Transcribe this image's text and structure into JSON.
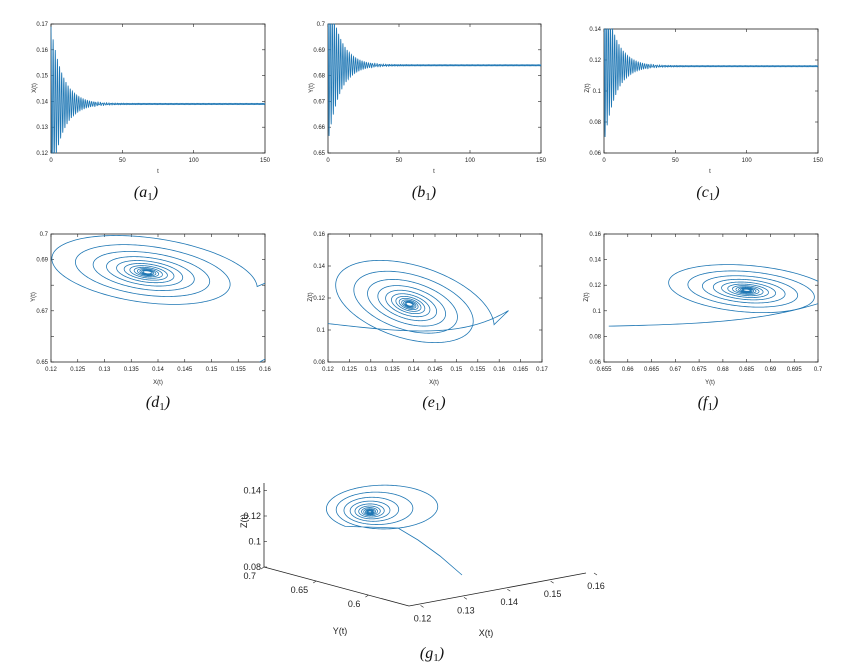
{
  "figure": {
    "line_color": "#1f77b4"
  },
  "chart_data": [
    {
      "id": "a1",
      "type": "line",
      "caption": "a",
      "caption_sub": "1",
      "xlabel": "t",
      "ylabel": "X(t)",
      "xlim": [
        0,
        150
      ],
      "ylim": [
        0.12,
        0.17
      ],
      "xticks": [
        0,
        50,
        100,
        150
      ],
      "yticks": [
        0.12,
        0.13,
        0.14,
        0.15,
        0.16,
        0.17
      ],
      "xtick_labels": [
        "0",
        "50",
        "100",
        "150"
      ],
      "ytick_labels": [
        "0.12",
        "0.13",
        "0.14",
        "0.15",
        "0.16",
        "0.17"
      ],
      "series": [
        {
          "name": "X(t)",
          "equilibrium": 0.139,
          "initial_amplitude": 0.03,
          "decay_rate": 0.12,
          "period": 1.5
        }
      ]
    },
    {
      "id": "b1",
      "type": "line",
      "caption": "b",
      "caption_sub": "1",
      "xlabel": "t",
      "ylabel": "Y(t)",
      "xlim": [
        0,
        150
      ],
      "ylim": [
        0.65,
        0.7
      ],
      "xticks": [
        0,
        50,
        100,
        150
      ],
      "yticks": [
        0.65,
        0.66,
        0.67,
        0.68,
        0.69,
        0.7
      ],
      "xtick_labels": [
        "0",
        "50",
        "100",
        "150"
      ],
      "ytick_labels": [
        "0.65",
        "0.66",
        "0.67",
        "0.68",
        "0.69",
        "0.7"
      ],
      "series": [
        {
          "name": "Y(t)",
          "equilibrium": 0.684,
          "initial_amplitude": 0.03,
          "decay_rate": 0.12,
          "period": 1.5
        }
      ]
    },
    {
      "id": "c1",
      "type": "line",
      "caption": "c",
      "caption_sub": "1",
      "xlabel": "t",
      "ylabel": "Z(t)",
      "xlim": [
        0,
        150
      ],
      "ylim": [
        0.06,
        0.14
      ],
      "xticks": [
        0,
        50,
        100,
        150
      ],
      "yticks": [
        0.06,
        0.08,
        0.1,
        0.12,
        0.14
      ],
      "xtick_labels": [
        "0",
        "50",
        "100",
        "150"
      ],
      "ytick_labels": [
        "0.06",
        "0.08",
        "0.1",
        "0.12",
        "0.14"
      ],
      "series": [
        {
          "name": "Z(t)",
          "equilibrium": 0.116,
          "initial_amplitude": 0.05,
          "decay_rate": 0.12,
          "period": 1.5
        }
      ]
    },
    {
      "id": "d1",
      "type": "phase",
      "caption": "d",
      "caption_sub": "1",
      "xlabel": "X(t)",
      "ylabel": "Y(t)",
      "xlim": [
        0.12,
        0.16
      ],
      "ylim": [
        0.65,
        0.7
      ],
      "xticks": [
        0.12,
        0.125,
        0.13,
        0.135,
        0.14,
        0.145,
        0.15,
        0.155,
        0.16
      ],
      "yticks": [
        0.65,
        0.66,
        0.67,
        0.68,
        0.69,
        0.7
      ],
      "xtick_labels": [
        "0.12",
        "0.125",
        "0.13",
        "0.135",
        "0.14",
        "0.145",
        "0.15",
        "0.155",
        "0.16"
      ],
      "ytick_labels": [
        "0.65",
        "",
        "0.67",
        "",
        "0.69",
        "0.7"
      ],
      "series": [
        {
          "name": "trajectory",
          "center": [
            0.138,
            0.685
          ],
          "start": [
            0.159,
            0.65
          ],
          "radius": [
            0.019,
            0.014
          ],
          "tilt_deg": -20,
          "turns": 12
        }
      ]
    },
    {
      "id": "e1",
      "type": "phase",
      "caption": "e",
      "caption_sub": "1",
      "xlabel": "X(t)",
      "ylabel": "Z(t)",
      "xlim": [
        0.12,
        0.17
      ],
      "ylim": [
        0.08,
        0.16
      ],
      "xticks": [
        0.12,
        0.125,
        0.13,
        0.135,
        0.14,
        0.145,
        0.15,
        0.155,
        0.16,
        0.165,
        0.17
      ],
      "yticks": [
        0.08,
        0.1,
        0.12,
        0.14,
        0.16
      ],
      "xtick_labels": [
        "0.12",
        "0.125",
        "0.13",
        "0.135",
        "0.14",
        "0.145",
        "0.15",
        "0.155",
        "0.16",
        "0.165",
        "0.17"
      ],
      "ytick_labels": [
        "0.08",
        "0.1",
        "0.12",
        "0.14",
        "0.16"
      ],
      "series": [
        {
          "name": "trajectory",
          "center": [
            0.139,
            0.116
          ],
          "start": [
            0.12,
            0.104
          ],
          "radius": [
            0.019,
            0.026
          ],
          "tilt_deg": -25,
          "turns": 12
        }
      ]
    },
    {
      "id": "f1",
      "type": "phase",
      "caption": "f",
      "caption_sub": "1",
      "xlabel": "Y(t)",
      "ylabel": "Z(t)",
      "xlim": [
        0.655,
        0.7
      ],
      "ylim": [
        0.06,
        0.16
      ],
      "xticks": [
        0.655,
        0.66,
        0.665,
        0.67,
        0.675,
        0.68,
        0.685,
        0.69,
        0.695,
        0.7
      ],
      "yticks": [
        0.06,
        0.08,
        0.1,
        0.12,
        0.14,
        0.16
      ],
      "xtick_labels": [
        "0.655",
        "0.66",
        "0.665",
        "0.67",
        "0.675",
        "0.68",
        "0.685",
        "0.69",
        "0.695",
        "0.7"
      ],
      "ytick_labels": [
        "0.06",
        "0.08",
        "0.1",
        "0.12",
        "0.14",
        "0.16"
      ],
      "series": [
        {
          "name": "trajectory",
          "center": [
            0.685,
            0.116
          ],
          "start": [
            0.656,
            0.088
          ],
          "radius": [
            0.017,
            0.02
          ],
          "tilt_deg": -15,
          "turns": 12
        }
      ]
    },
    {
      "id": "g1",
      "type": "phase3d",
      "caption": "g",
      "caption_sub": "1",
      "xlabel": "X(t)",
      "ylabel": "Y(t)",
      "zlabel": "Z(t)",
      "xlim": [
        0.12,
        0.16
      ],
      "ylim": [
        0.6,
        0.7
      ],
      "zlim": [
        0.08,
        0.14
      ],
      "xtick_labels": [
        "0.12",
        "0.13",
        "0.14",
        "0.15",
        "0.16"
      ],
      "ytick_labels": [
        "0.7",
        "0.65",
        "0.6"
      ],
      "ztick_labels": [
        "0.08",
        "0.1",
        "0.12",
        "0.14"
      ],
      "series": [
        {
          "name": "trajectory",
          "center": [
            0.139,
            0.684,
            0.116
          ],
          "turns": 12
        }
      ]
    }
  ]
}
